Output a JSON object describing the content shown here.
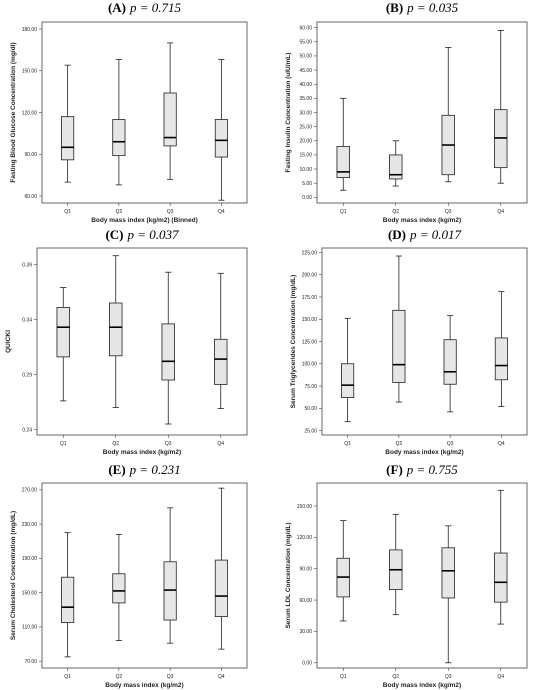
{
  "chart_data": [
    {
      "type": "box",
      "panel_label": "(A)",
      "p_value": "p = 0.715",
      "ylabel": "Fasting Blood Glucose Concentration (mg/dl)",
      "xlabel": "Body mass index (kg/m2) (Binned)",
      "categories": [
        "Q1",
        "Q2",
        "Q3",
        "Q4"
      ],
      "ylim": [
        55,
        185
      ],
      "yticks": [
        60,
        90,
        120,
        150,
        180
      ],
      "ytick_labels": [
        "60.00",
        "90.00",
        "120.00",
        "150.00",
        "180.00"
      ],
      "boxes": [
        {
          "min": 70,
          "q1": 86,
          "median": 95,
          "q3": 117,
          "max": 154
        },
        {
          "min": 68,
          "q1": 89,
          "median": 99,
          "q3": 115,
          "max": 158
        },
        {
          "min": 72,
          "q1": 96,
          "median": 102,
          "q3": 134,
          "max": 170
        },
        {
          "min": 57,
          "q1": 88,
          "median": 100,
          "q3": 115,
          "max": 158
        }
      ]
    },
    {
      "type": "box",
      "panel_label": "(B)",
      "p_value": "p = 0.035",
      "ylabel": "Fasting Insulin Concentration (uIU/mL)",
      "xlabel": "Body mass index (kg/m2)",
      "categories": [
        "Q1",
        "Q2",
        "Q3",
        "Q4"
      ],
      "ylim": [
        -2,
        62
      ],
      "yticks": [
        0,
        5,
        10,
        15,
        20,
        25,
        30,
        35,
        40,
        45,
        50,
        55,
        60
      ],
      "ytick_labels": [
        "0.00",
        "5.00",
        "10.00",
        "15.00",
        "20.00",
        "25.00",
        "30.00",
        "35.00",
        "40.00",
        "45.00",
        "50.00",
        "55.00",
        "60.00"
      ],
      "boxes": [
        {
          "min": 2.5,
          "q1": 7,
          "median": 9,
          "q3": 18,
          "max": 35
        },
        {
          "min": 4,
          "q1": 6.5,
          "median": 8,
          "q3": 15,
          "max": 20
        },
        {
          "min": 5.5,
          "q1": 8,
          "median": 18.5,
          "q3": 29,
          "max": 53
        },
        {
          "min": 5,
          "q1": 10.5,
          "median": 21,
          "q3": 31,
          "max": 59
        }
      ]
    },
    {
      "type": "box",
      "panel_label": "(C)",
      "p_value": "p = 0.037",
      "ylabel": "QUICKI",
      "xlabel": "Body mass index (kg/m2)",
      "categories": [
        "Q1",
        "Q2",
        "Q3",
        "Q4"
      ],
      "ylim": [
        0.235,
        0.405
      ],
      "yticks": [
        0.24,
        0.29,
        0.34,
        0.39
      ],
      "ytick_labels": [
        "0.24",
        "0.29",
        "0.34",
        "0.39"
      ],
      "boxes": [
        {
          "min": 0.266,
          "q1": 0.306,
          "median": 0.333,
          "q3": 0.351,
          "max": 0.369
        },
        {
          "min": 0.26,
          "q1": 0.307,
          "median": 0.333,
          "q3": 0.355,
          "max": 0.398
        },
        {
          "min": 0.245,
          "q1": 0.285,
          "median": 0.302,
          "q3": 0.336,
          "max": 0.383
        },
        {
          "min": 0.259,
          "q1": 0.281,
          "median": 0.304,
          "q3": 0.322,
          "max": 0.382
        }
      ]
    },
    {
      "type": "box",
      "panel_label": "(D)",
      "p_value": "p = 0.017",
      "ylabel": "Serum Triglycerides Concentration (mg/dL)",
      "xlabel": "Body mass index (kg/m2)",
      "categories": [
        "Q1",
        "Q2",
        "Q3",
        "Q4"
      ],
      "ylim": [
        20,
        230
      ],
      "yticks": [
        25,
        50,
        75,
        100,
        125,
        150,
        175,
        200,
        225
      ],
      "ytick_labels": [
        "25.00",
        "50.00",
        "75.00",
        "100.00",
        "125.00",
        "150.00",
        "175.00",
        "200.00",
        "225.00"
      ],
      "boxes": [
        {
          "min": 35,
          "q1": 62,
          "median": 76,
          "q3": 100,
          "max": 151
        },
        {
          "min": 57,
          "q1": 79,
          "median": 99,
          "q3": 160,
          "max": 221
        },
        {
          "min": 46,
          "q1": 77,
          "median": 91,
          "q3": 127,
          "max": 154
        },
        {
          "min": 52,
          "q1": 82,
          "median": 98,
          "q3": 129,
          "max": 181
        }
      ]
    },
    {
      "type": "box",
      "panel_label": "(E)",
      "p_value": "p = 0.231",
      "ylabel": "Serum Cholesterol Concentration (mg/dL)",
      "xlabel": "Body mass index (kg/m2)",
      "categories": [
        "Q1",
        "Q2",
        "Q3",
        "Q4"
      ],
      "ylim": [
        62,
        278
      ],
      "yticks": [
        70,
        110,
        150,
        190,
        230,
        270
      ],
      "ytick_labels": [
        "70.00",
        "110.00",
        "150.00",
        "190.00",
        "230.00",
        "270.00"
      ],
      "boxes": [
        {
          "min": 75,
          "q1": 115,
          "median": 133,
          "q3": 168,
          "max": 220
        },
        {
          "min": 94,
          "q1": 138,
          "median": 152,
          "q3": 172,
          "max": 218
        },
        {
          "min": 91,
          "q1": 118,
          "median": 153,
          "q3": 186,
          "max": 249
        },
        {
          "min": 84,
          "q1": 122,
          "median": 146,
          "q3": 188,
          "max": 272
        }
      ]
    },
    {
      "type": "box",
      "panel_label": "(F)",
      "p_value": "p = 0.755",
      "ylabel": "Serum LDL Concentration (mg/dL)",
      "xlabel": "Body mass index (kg/m2)",
      "categories": [
        "Q1",
        "Q2",
        "Q3",
        "Q4"
      ],
      "ylim": [
        -5,
        172
      ],
      "yticks": [
        0,
        30,
        60,
        90,
        120,
        150
      ],
      "ytick_labels": [
        "0.00",
        "30.00",
        "60.00",
        "90.00",
        "120.00",
        "150.00"
      ],
      "boxes": [
        {
          "min": 40,
          "q1": 63,
          "median": 82,
          "q3": 100,
          "max": 136
        },
        {
          "min": 46,
          "q1": 70,
          "median": 89,
          "q3": 108,
          "max": 142
        },
        {
          "min": 0,
          "q1": 62,
          "median": 88,
          "q3": 110,
          "max": 131
        },
        {
          "min": 37,
          "q1": 58,
          "median": 77,
          "q3": 105,
          "max": 165
        }
      ]
    }
  ]
}
